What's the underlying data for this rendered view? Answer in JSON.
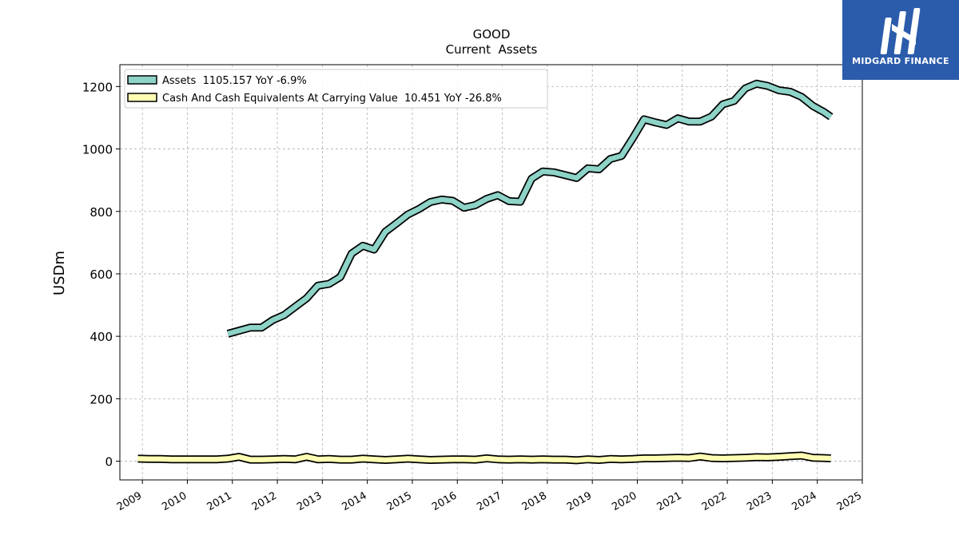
{
  "brand": {
    "name": "MIDGARD FINANCE",
    "bg_color": "#2b5bab"
  },
  "chart_data": {
    "type": "line",
    "title": "GOOD",
    "subtitle": "Current  Assets",
    "ylabel": "USDm",
    "xlabel": "",
    "xlim": [
      2008.5,
      2025.0
    ],
    "ylim": [
      -60,
      1270
    ],
    "x_ticks": [
      "2009",
      "2010",
      "2011",
      "2012",
      "2013",
      "2014",
      "2015",
      "2016",
      "2017",
      "2018",
      "2019",
      "2020",
      "2021",
      "2022",
      "2023",
      "2024",
      "2025"
    ],
    "y_ticks": [
      "0",
      "200",
      "400",
      "600",
      "800",
      "1000",
      "1200"
    ],
    "grid": true,
    "legend_position": "top-left",
    "series": [
      {
        "name": "Assets  1105.157 YoY -6.9%",
        "color": "#8dd3c7",
        "x": [
          2010.9,
          2011.15,
          2011.4,
          2011.65,
          2011.9,
          2012.15,
          2012.4,
          2012.65,
          2012.9,
          2013.15,
          2013.4,
          2013.65,
          2013.9,
          2014.15,
          2014.4,
          2014.65,
          2014.9,
          2015.15,
          2015.4,
          2015.65,
          2015.9,
          2016.15,
          2016.4,
          2016.65,
          2016.9,
          2017.15,
          2017.4,
          2017.65,
          2017.9,
          2018.15,
          2018.4,
          2018.65,
          2018.9,
          2019.15,
          2019.4,
          2019.65,
          2019.9,
          2020.15,
          2020.4,
          2020.65,
          2020.9,
          2021.15,
          2021.4,
          2021.65,
          2021.9,
          2022.15,
          2022.4,
          2022.65,
          2022.9,
          2023.15,
          2023.4,
          2023.65,
          2023.9,
          2024.15,
          2024.3
        ],
        "values": [
          408,
          418,
          428,
          428,
          452,
          468,
          495,
          522,
          562,
          568,
          590,
          665,
          690,
          678,
          735,
          762,
          790,
          808,
          830,
          838,
          834,
          812,
          820,
          840,
          852,
          833,
          831,
          905,
          928,
          925,
          916,
          907,
          938,
          935,
          968,
          978,
          1035,
          1095,
          1085,
          1077,
          1098,
          1088,
          1088,
          1104,
          1143,
          1154,
          1194,
          1209,
          1202,
          1188,
          1183,
          1167,
          1138,
          1118,
          1103
        ]
      },
      {
        "name": "Cash And Cash Equivalents At Carrying Value  10.451 YoY -26.8%",
        "color": "#ffffb3",
        "x": [
          2008.9,
          2009.15,
          2009.4,
          2009.65,
          2009.9,
          2010.15,
          2010.4,
          2010.65,
          2010.9,
          2011.15,
          2011.4,
          2011.65,
          2011.9,
          2012.15,
          2012.4,
          2012.65,
          2012.9,
          2013.15,
          2013.4,
          2013.65,
          2013.9,
          2014.15,
          2014.4,
          2014.65,
          2014.9,
          2015.15,
          2015.4,
          2015.65,
          2015.9,
          2016.15,
          2016.4,
          2016.65,
          2016.9,
          2017.15,
          2017.4,
          2017.65,
          2017.9,
          2018.15,
          2018.4,
          2018.65,
          2018.9,
          2019.15,
          2019.4,
          2019.65,
          2019.9,
          2020.15,
          2020.4,
          2020.65,
          2020.9,
          2021.15,
          2021.4,
          2021.65,
          2021.9,
          2022.15,
          2022.4,
          2022.65,
          2022.9,
          2023.15,
          2023.4,
          2023.65,
          2023.9,
          2024.15,
          2024.3
        ],
        "values": [
          8,
          7,
          7,
          6,
          6,
          6,
          6,
          6,
          8,
          14,
          5,
          5,
          6,
          7,
          6,
          14,
          6,
          7,
          5,
          5,
          8,
          6,
          4,
          6,
          8,
          6,
          4,
          5,
          6,
          6,
          5,
          9,
          6,
          5,
          6,
          5,
          6,
          5,
          5,
          3,
          6,
          4,
          7,
          6,
          7,
          9,
          9,
          10,
          11,
          10,
          15,
          10,
          9,
          10,
          11,
          13,
          12,
          14,
          16,
          18,
          11,
          10,
          9
        ]
      }
    ]
  }
}
